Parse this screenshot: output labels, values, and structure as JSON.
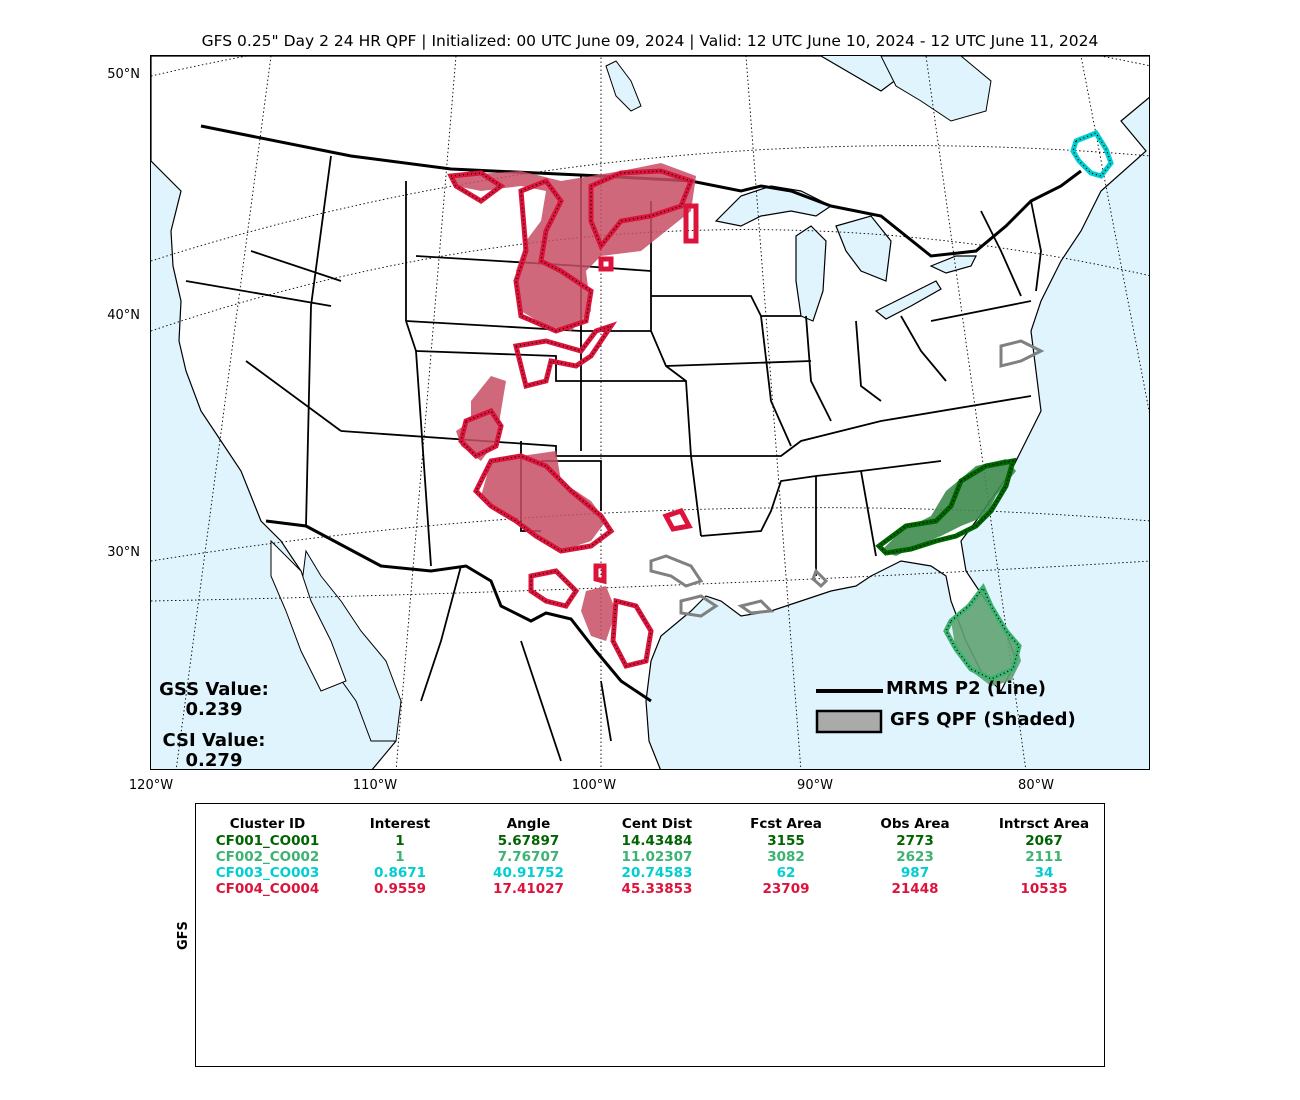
{
  "title": "GFS 0.25\" Day 2 24 HR QPF | Initialized: 00 UTC June 09, 2024 | Valid: 12 UTC June 10, 2024 - 12 UTC June 11, 2024",
  "map": {
    "lat_labels": [
      "50°N",
      "40°N",
      "30°N"
    ],
    "lon_labels": [
      "120°W",
      "110°W",
      "100°W",
      "90°W",
      "80°W"
    ],
    "colors": {
      "water": "#dff4fd",
      "land": "#ffffff",
      "border": "#000000",
      "cluster_1": "#006400",
      "cluster_2": "#3cb371",
      "cluster_3": "#00ced1",
      "cluster_4": "#dc143c",
      "unmatched": "#808080"
    }
  },
  "scores": {
    "gss_label": "GSS Value:",
    "gss_value": "0.239",
    "csi_label": "CSI Value:",
    "csi_value": "0.279"
  },
  "legend": {
    "line_label": "MRMS P2 (Line)",
    "shaded_label": "GFS QPF (Shaded)"
  },
  "table": {
    "side_label": "GFS",
    "headers": [
      "Cluster ID",
      "Interest",
      "Angle",
      "Cent Dist",
      "Fcst Area",
      "Obs Area",
      "Intrsct Area"
    ],
    "rows": [
      {
        "color": "#006400",
        "cells": [
          "CF001_CO001",
          "1",
          "5.67897",
          "14.43484",
          "3155",
          "2773",
          "2067"
        ]
      },
      {
        "color": "#3cb371",
        "cells": [
          "CF002_CO002",
          "1",
          "7.76707",
          "11.02307",
          "3082",
          "2623",
          "2111"
        ]
      },
      {
        "color": "#00ced1",
        "cells": [
          "CF003_CO003",
          "0.8671",
          "40.91752",
          "20.74583",
          "62",
          "987",
          "34"
        ]
      },
      {
        "color": "#dc143c",
        "cells": [
          "CF004_CO004",
          "0.9559",
          "17.41027",
          "45.33853",
          "23709",
          "21448",
          "10535"
        ]
      }
    ]
  }
}
